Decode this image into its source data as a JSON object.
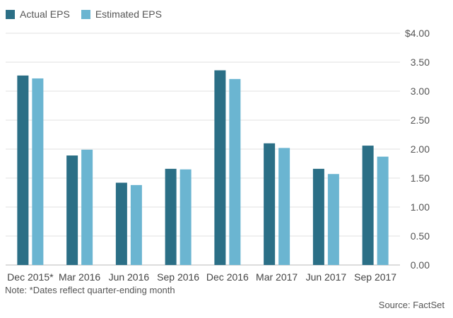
{
  "chart_data": {
    "type": "bar",
    "categories": [
      "Dec 2015*",
      "Mar 2016",
      "Jun 2016",
      "Sep 2016",
      "Dec 2016",
      "Mar 2017",
      "Jun 2017",
      "Sep 2017"
    ],
    "series": [
      {
        "name": "Actual EPS",
        "values": [
          3.27,
          1.89,
          1.42,
          1.66,
          3.36,
          2.1,
          1.66,
          2.06
        ],
        "color": "#2b6f86"
      },
      {
        "name": "Estimated EPS",
        "values": [
          3.22,
          1.99,
          1.38,
          1.65,
          3.21,
          2.02,
          1.57,
          1.87
        ],
        "color": "#6bb5d1"
      }
    ],
    "ylim": [
      0,
      4
    ],
    "yticks": [
      "0.00",
      "0.50",
      "1.00",
      "1.50",
      "2.00",
      "2.50",
      "3.00",
      "3.50",
      "$4.00"
    ],
    "grid": true,
    "legend_position": "top-left",
    "note": "Note: *Dates reflect quarter-ending month",
    "source": "Source: FactSet"
  }
}
